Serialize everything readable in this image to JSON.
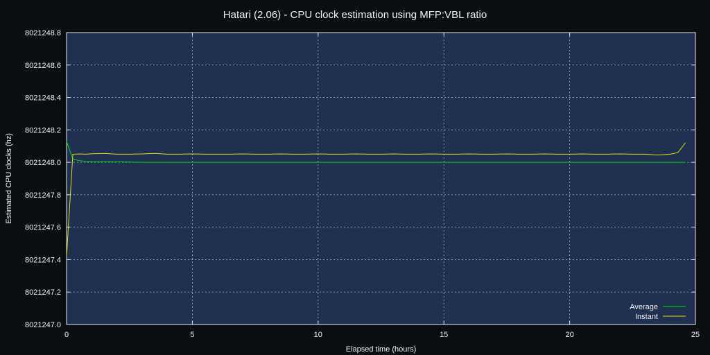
{
  "chart_data": {
    "type": "line",
    "title": "Hatari (2.06) - CPU clock estimation using MFP:VBL ratio",
    "xlabel": "Elapsed time (hours)",
    "ylabel": "Estimated CPU clocks (hz)",
    "xlim": [
      0,
      25
    ],
    "ylim": [
      8021247.0,
      8021248.8
    ],
    "xticks": [
      0,
      5,
      10,
      15,
      20,
      25
    ],
    "xtick_labels": [
      "0",
      "5",
      "10",
      "15",
      "20",
      "25"
    ],
    "yticks": [
      8021247.0,
      8021247.2,
      8021247.4,
      8021247.6,
      8021247.8,
      8021248.0,
      8021248.2,
      8021248.4,
      8021248.6,
      8021248.8
    ],
    "ytick_labels": [
      "8021247.0",
      "8021247.2",
      "8021247.4",
      "8021247.6",
      "8021247.8",
      "8021248.0",
      "8021248.2",
      "8021248.4",
      "8021248.6",
      "8021248.8"
    ],
    "grid": true,
    "legend_position": "bottom-right",
    "colors": {
      "background": "#0a0e13",
      "plot_area": "#203050",
      "grid": "#a8b0c0",
      "text": "#f0f0f0"
    },
    "series": [
      {
        "name": "Average",
        "color": "#00e000",
        "x": [
          0,
          0.25,
          0.5,
          0.75,
          1.0,
          1.5,
          2.0,
          2.5,
          3,
          4,
          5,
          6,
          7,
          8,
          9,
          10,
          11,
          12,
          13,
          14,
          15,
          16,
          17,
          18,
          19,
          20,
          21,
          22,
          23,
          24,
          24.6
        ],
        "y": [
          8021248.13,
          8021248.02,
          8021248.01,
          8021248.007,
          8021248.005,
          8021248.004,
          8021248.003,
          8021248.002,
          8021248.0,
          8021248.0,
          8021248.0,
          8021248.0,
          8021248.0,
          8021248.0,
          8021248.0,
          8021248.0,
          8021248.0,
          8021248.0,
          8021248.0,
          8021248.0,
          8021248.0,
          8021248.0,
          8021248.0,
          8021248.0,
          8021248.0,
          8021248.0,
          8021248.0,
          8021248.0,
          8021248.0,
          8021248.0,
          8021248.0
        ]
      },
      {
        "name": "Instant",
        "color": "#e0e000",
        "x": [
          0,
          0.25,
          0.5,
          0.75,
          1.0,
          1.5,
          2.0,
          2.5,
          3,
          3.5,
          4,
          4.5,
          5,
          5.5,
          6,
          6.5,
          7,
          7.5,
          8,
          8.5,
          9,
          9.5,
          10,
          10.5,
          11,
          11.5,
          12,
          12.5,
          13,
          13.5,
          14,
          14.5,
          15,
          15.5,
          16,
          16.5,
          17,
          17.5,
          18,
          18.5,
          19,
          19.5,
          20,
          20.5,
          21,
          21.5,
          22,
          22.5,
          23,
          23.5,
          24,
          24.3,
          24.6
        ],
        "y": [
          8021247.42,
          8021248.05,
          8021248.052,
          8021248.05,
          8021248.053,
          8021248.055,
          8021248.05,
          8021248.05,
          8021248.052,
          8021248.055,
          8021248.05,
          8021248.05,
          8021248.052,
          8021248.05,
          8021248.05,
          8021248.05,
          8021248.052,
          8021248.05,
          8021248.05,
          8021248.052,
          8021248.05,
          8021248.05,
          8021248.052,
          8021248.05,
          8021248.05,
          8021248.052,
          8021248.05,
          8021248.05,
          8021248.052,
          8021248.05,
          8021248.05,
          8021248.052,
          8021248.05,
          8021248.05,
          8021248.052,
          8021248.05,
          8021248.05,
          8021248.052,
          8021248.05,
          8021248.05,
          8021248.052,
          8021248.05,
          8021248.05,
          8021248.052,
          8021248.05,
          8021248.05,
          8021248.052,
          8021248.05,
          8021248.05,
          8021248.045,
          8021248.05,
          8021248.06,
          8021248.12
        ]
      }
    ]
  }
}
